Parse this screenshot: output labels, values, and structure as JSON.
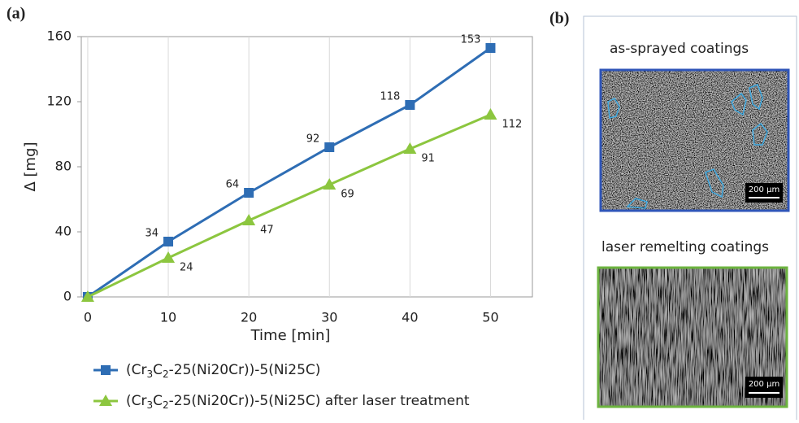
{
  "chart_data": {
    "type": "line",
    "panel_label": "(a)",
    "x_label": "Time [min]",
    "y_label": "Δ [mg]",
    "x": [
      0,
      10,
      20,
      30,
      40,
      50
    ],
    "series": [
      {
        "name": "(Cr3C2-25(Ni20Cr))-5(Ni25C)",
        "color": "#2e6db4",
        "marker": "square",
        "values": [
          0,
          34,
          64,
          92,
          118,
          153
        ]
      },
      {
        "name": "(Cr3C2-25(Ni20Cr))-5(Ni25C) after laser treatment",
        "color": "#8cc63f",
        "marker": "triangle",
        "values": [
          0,
          24,
          47,
          69,
          91,
          112
        ]
      }
    ],
    "xlim": [
      -0.8,
      55.2
    ],
    "ylim": [
      0,
      160
    ],
    "xticks": [
      0,
      10,
      20,
      30,
      40,
      50
    ],
    "yticks": [
      0,
      40,
      80,
      120,
      160
    ],
    "grid": "x",
    "legend": "bottom"
  },
  "panel_b": {
    "panel_label": "(b)",
    "images": [
      {
        "caption": "as-sprayed coatings",
        "scale_bar": "200 µm",
        "border": "#2f55b8"
      },
      {
        "caption": "laser remelting coatings",
        "scale_bar": "200 µm",
        "border": "#6cb33f"
      }
    ]
  }
}
